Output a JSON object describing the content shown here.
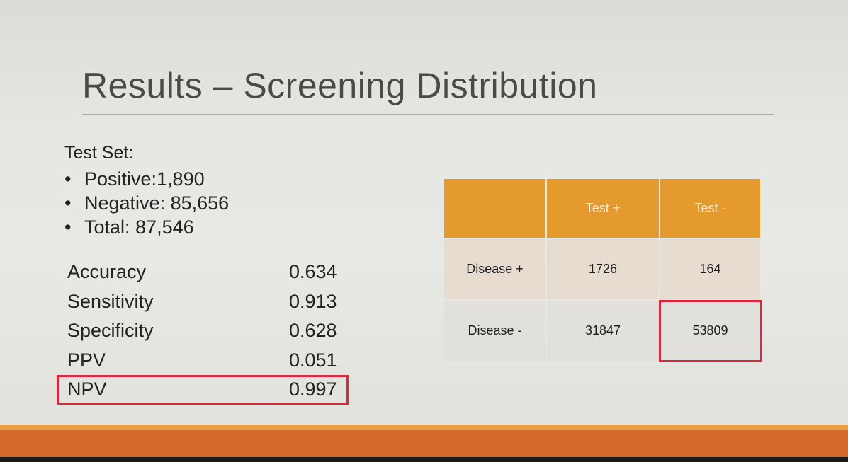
{
  "slide": {
    "title": "Results – Screening Distribution",
    "test_set": {
      "heading": "Test Set:",
      "bullets": [
        "Positive:1,890",
        "Negative: 85,656",
        "Total: 87,546"
      ]
    },
    "metrics": [
      {
        "label": "Accuracy",
        "value": "0.634"
      },
      {
        "label": "Sensitivity",
        "value": "0.913"
      },
      {
        "label": "Specificity",
        "value": "0.628"
      },
      {
        "label": "PPV",
        "value": "0.051"
      },
      {
        "label": "NPV",
        "value": "0.997"
      }
    ],
    "matrix": {
      "col_headers": [
        "Test +",
        "Test -"
      ],
      "rows": [
        {
          "label": "Disease +",
          "values": [
            "1726",
            "164"
          ]
        },
        {
          "label": "Disease -",
          "values": [
            "31847",
            "53809"
          ]
        }
      ]
    },
    "colors": {
      "accent_orange": "#e59a2e",
      "highlight_red": "#e0253c",
      "footer_orange": "#d36a2c"
    }
  }
}
